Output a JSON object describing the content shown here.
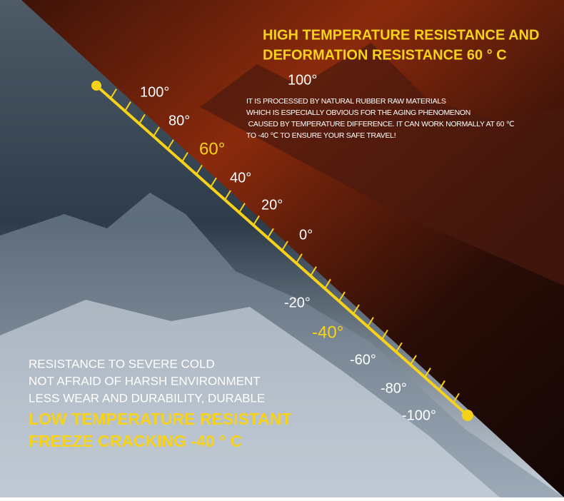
{
  "heading": {
    "lines": [
      "HIGH TEMPERATURE RESISTANCE AND",
      "DEFORMATION RESISTANCE 60 ° C"
    ]
  },
  "top_label": "100°",
  "description": {
    "lines": [
      "IT IS PROCESSED BY NATURAL RUBBER RAW MATERIALS",
      "WHICH IS ESPECIALLY OBVIOUS FOR THE AGING PHENOMENON",
      " CAUSED BY TEMPERATURE DIFFERENCE. IT CAN WORK NORMALLY AT 60 ℃",
      "TO -40 ℃ TO ENSURE YOUR SAFE TRAVEL!"
    ]
  },
  "scale": {
    "labels": [
      "100°",
      "80°",
      "60°",
      "40°",
      "20°",
      "0°",
      "-20°",
      "-40°",
      "-60°",
      "-80°",
      "-100°"
    ]
  },
  "cold_features": {
    "lines": [
      "RESISTANCE TO SEVERE COLD",
      "NOT AFRAID OF HARSH ENVIRONMENT",
      "LESS WEAR AND DURABILITY, DURABLE"
    ]
  },
  "cold_heading": {
    "lines": [
      "LOW TEMPERATURE RESISTANT",
      "FREEZE CRACKING -40 ° C"
    ]
  }
}
